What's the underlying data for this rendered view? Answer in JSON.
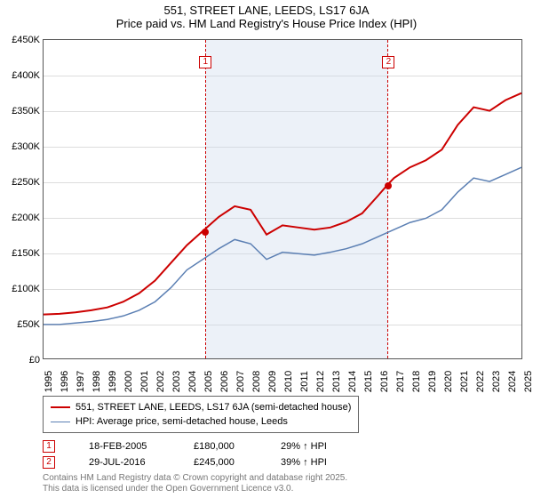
{
  "title": "551, STREET LANE, LEEDS, LS17 6JA",
  "subtitle": "Price paid vs. HM Land Registry's House Price Index (HPI)",
  "chart": {
    "type": "line",
    "xlim": [
      1995,
      2025
    ],
    "ylim": [
      0,
      450000
    ],
    "ytick_step": 50000,
    "yticks": [
      "£0",
      "£50K",
      "£100K",
      "£150K",
      "£200K",
      "£250K",
      "£300K",
      "£350K",
      "£400K",
      "£450K"
    ],
    "xticks": [
      "1995",
      "1996",
      "1997",
      "1998",
      "1999",
      "2000",
      "2001",
      "2002",
      "2003",
      "2004",
      "2005",
      "2006",
      "2007",
      "2008",
      "2009",
      "2010",
      "2011",
      "2012",
      "2013",
      "2014",
      "2015",
      "2016",
      "2017",
      "2018",
      "2019",
      "2020",
      "2021",
      "2022",
      "2023",
      "2024",
      "2025"
    ],
    "shade": {
      "from": 2005.13,
      "to": 2016.58
    },
    "series_price": {
      "label": "551, STREET LANE, LEEDS, LS17 6JA (semi-detached house)",
      "color": "#cc0000",
      "width": 2,
      "data": [
        [
          1995,
          62000
        ],
        [
          1996,
          63000
        ],
        [
          1997,
          65000
        ],
        [
          1998,
          68000
        ],
        [
          1999,
          72000
        ],
        [
          2000,
          80000
        ],
        [
          2001,
          92000
        ],
        [
          2002,
          110000
        ],
        [
          2003,
          135000
        ],
        [
          2004,
          160000
        ],
        [
          2005,
          180000
        ],
        [
          2006,
          200000
        ],
        [
          2007,
          215000
        ],
        [
          2008,
          210000
        ],
        [
          2009,
          175000
        ],
        [
          2010,
          188000
        ],
        [
          2011,
          185000
        ],
        [
          2012,
          182000
        ],
        [
          2013,
          185000
        ],
        [
          2014,
          193000
        ],
        [
          2015,
          205000
        ],
        [
          2016,
          230000
        ],
        [
          2016.58,
          245000
        ],
        [
          2017,
          255000
        ],
        [
          2018,
          270000
        ],
        [
          2019,
          280000
        ],
        [
          2020,
          295000
        ],
        [
          2021,
          330000
        ],
        [
          2022,
          355000
        ],
        [
          2023,
          350000
        ],
        [
          2024,
          365000
        ],
        [
          2025,
          375000
        ]
      ]
    },
    "series_hpi": {
      "label": "HPI: Average price, semi-detached house, Leeds",
      "color": "#5b7fb3",
      "width": 1.5,
      "data": [
        [
          1995,
          48000
        ],
        [
          1996,
          48000
        ],
        [
          1997,
          50000
        ],
        [
          1998,
          52000
        ],
        [
          1999,
          55000
        ],
        [
          2000,
          60000
        ],
        [
          2001,
          68000
        ],
        [
          2002,
          80000
        ],
        [
          2003,
          100000
        ],
        [
          2004,
          125000
        ],
        [
          2005,
          140000
        ],
        [
          2006,
          155000
        ],
        [
          2007,
          168000
        ],
        [
          2008,
          162000
        ],
        [
          2009,
          140000
        ],
        [
          2010,
          150000
        ],
        [
          2011,
          148000
        ],
        [
          2012,
          146000
        ],
        [
          2013,
          150000
        ],
        [
          2014,
          155000
        ],
        [
          2015,
          162000
        ],
        [
          2016,
          172000
        ],
        [
          2017,
          182000
        ],
        [
          2018,
          192000
        ],
        [
          2019,
          198000
        ],
        [
          2020,
          210000
        ],
        [
          2021,
          235000
        ],
        [
          2022,
          255000
        ],
        [
          2023,
          250000
        ],
        [
          2024,
          260000
        ],
        [
          2025,
          270000
        ]
      ]
    },
    "sale_points": [
      {
        "n": "1",
        "x": 2005.13,
        "y": 180000
      },
      {
        "n": "2",
        "x": 2016.58,
        "y": 245000
      }
    ]
  },
  "legend": {
    "s1": "551, STREET LANE, LEEDS, LS17 6JA (semi-detached house)",
    "s2": "HPI: Average price, semi-detached house, Leeds"
  },
  "sales": [
    {
      "n": "1",
      "date": "18-FEB-2005",
      "price": "£180,000",
      "diff": "29% ↑ HPI"
    },
    {
      "n": "2",
      "date": "29-JUL-2016",
      "price": "£245,000",
      "diff": "39% ↑ HPI"
    }
  ],
  "footer1": "Contains HM Land Registry data © Crown copyright and database right 2025.",
  "footer2": "This data is licensed under the Open Government Licence v3.0."
}
